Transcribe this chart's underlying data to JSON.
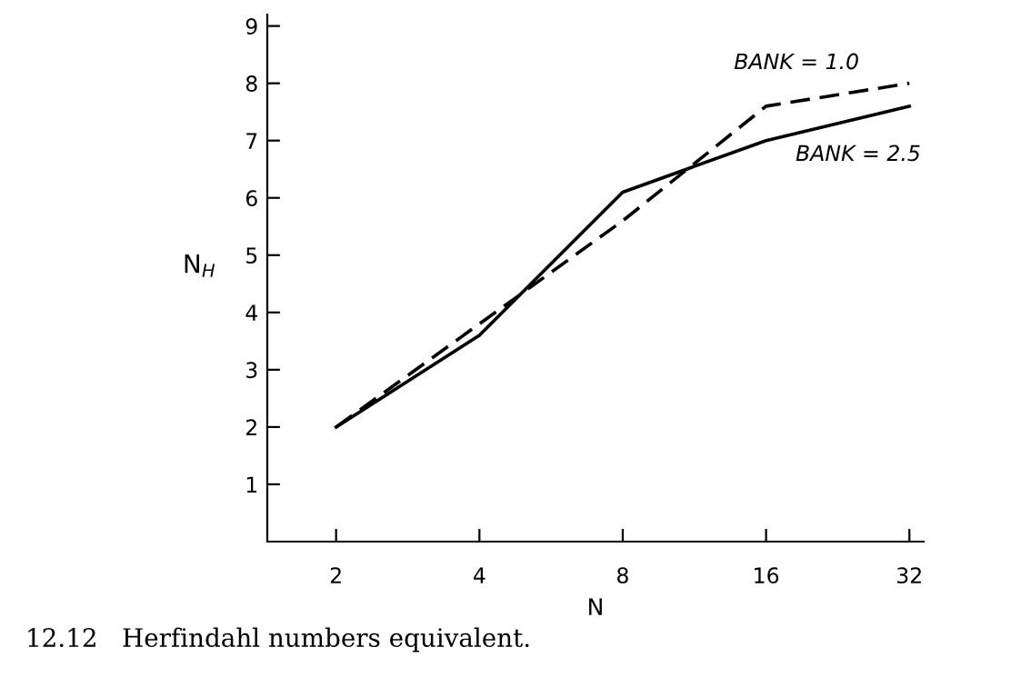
{
  "chart_data": {
    "type": "line",
    "xlabel": "N",
    "ylabel": "N$_{H}$",
    "categories": [
      "2",
      "4",
      "8",
      "16",
      "32"
    ],
    "series": [
      {
        "name": "BANK = 1.0",
        "color": "#000000",
        "line_style": "dashed",
        "values": [
          2.0,
          3.8,
          5.6,
          7.6,
          8.0
        ]
      },
      {
        "name": "BANK = 2.5",
        "color": "#000000",
        "line_style": "solid",
        "values": [
          2.0,
          3.6,
          6.1,
          7.0,
          7.6
        ]
      }
    ],
    "ylim": [
      0,
      9.2
    ],
    "yticks": [
      1,
      2,
      3,
      4,
      5,
      6,
      7,
      8,
      9
    ],
    "grid": false,
    "legend": false,
    "marker": "none",
    "annotations": [
      "12.12   Herfindahl numbers equivalent."
    ]
  }
}
